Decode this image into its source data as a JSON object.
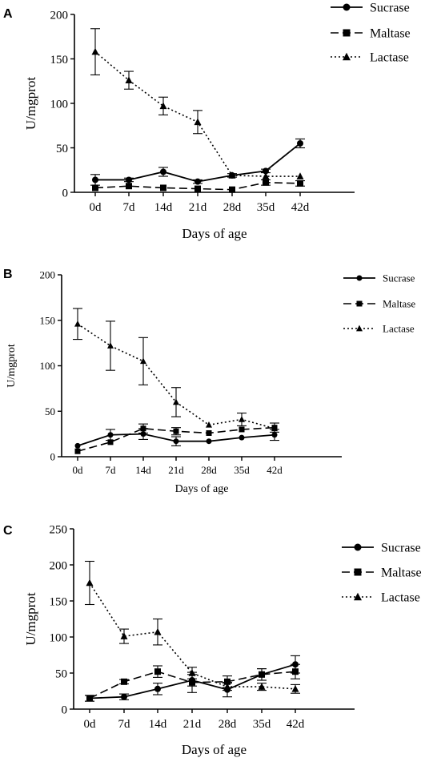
{
  "chart_data": [
    {
      "type": "line",
      "panel": "A",
      "ylabel": "U/mgprot",
      "xlabel": "Days of age",
      "categories": [
        "0d",
        "7d",
        "14d",
        "21d",
        "28d",
        "35d",
        "42d"
      ],
      "ylim": [
        0,
        200
      ],
      "yticks": [
        "0",
        "50",
        "100",
        "150",
        "200"
      ],
      "legend_placement": "top-right",
      "series": [
        {
          "name": "Sucrase",
          "style": "solid",
          "marker": "circle",
          "values": [
            14,
            14,
            23,
            12,
            19,
            24,
            55
          ],
          "errors": [
            6,
            2,
            5,
            2,
            2,
            2,
            5
          ]
        },
        {
          "name": "Maltase",
          "style": "dashed",
          "marker": "square",
          "values": [
            5,
            7,
            5,
            4,
            3,
            11,
            10
          ],
          "errors": [
            0,
            0,
            0,
            0,
            0,
            3,
            3
          ]
        },
        {
          "name": "Lactase",
          "style": "dotted",
          "marker": "triangle",
          "values": [
            158,
            126,
            97,
            79,
            19,
            18,
            18
          ],
          "errors": [
            26,
            10,
            10,
            13,
            0,
            0,
            0
          ]
        }
      ]
    },
    {
      "type": "line",
      "panel": "B",
      "ylabel": "U/mgprot",
      "xlabel": "Days of age",
      "categories": [
        "0d",
        "7d",
        "14d",
        "21d",
        "28d",
        "35d",
        "42d"
      ],
      "ylim": [
        0,
        200
      ],
      "yticks": [
        "0",
        "50",
        "100",
        "150",
        "200"
      ],
      "legend_placement": "top-right",
      "series": [
        {
          "name": "Sucrase",
          "style": "solid",
          "marker": "circle",
          "values": [
            12,
            24,
            25,
            17,
            17,
            21,
            24
          ],
          "errors": [
            0,
            6,
            6,
            5,
            0,
            0,
            6
          ]
        },
        {
          "name": "Maltase",
          "style": "dashed",
          "marker": "square",
          "values": [
            6,
            16,
            31,
            28,
            26,
            30,
            32
          ],
          "errors": [
            0,
            0,
            5,
            4,
            0,
            0,
            5
          ]
        },
        {
          "name": "Lactase",
          "style": "dotted",
          "marker": "triangle",
          "values": [
            146,
            122,
            105,
            60,
            35,
            41,
            31
          ],
          "errors": [
            17,
            27,
            26,
            16,
            0,
            7,
            0
          ]
        }
      ]
    },
    {
      "type": "line",
      "panel": "C",
      "ylabel": "U/mgprot",
      "xlabel": "Days of age",
      "categories": [
        "0d",
        "7d",
        "14d",
        "21d",
        "28d",
        "35d",
        "42d"
      ],
      "ylim": [
        0,
        250
      ],
      "yticks": [
        "0",
        "50",
        "100",
        "150",
        "200",
        "250"
      ],
      "legend_placement": "top-right",
      "series": [
        {
          "name": "Sucrase",
          "style": "solid",
          "marker": "circle",
          "values": [
            15,
            17,
            28,
            40,
            27,
            48,
            62
          ],
          "errors": [
            4,
            4,
            8,
            8,
            10,
            8,
            12
          ]
        },
        {
          "name": "Maltase",
          "style": "dashed",
          "marker": "square",
          "values": [
            15,
            38,
            52,
            37,
            38,
            48,
            52
          ],
          "errors": [
            4,
            3,
            8,
            14,
            8,
            8,
            10
          ]
        },
        {
          "name": "Lactase",
          "style": "dotted",
          "marker": "triangle",
          "values": [
            175,
            101,
            107,
            50,
            31,
            31,
            28
          ],
          "errors": [
            30,
            10,
            18,
            8,
            5,
            5,
            6
          ]
        }
      ]
    }
  ]
}
